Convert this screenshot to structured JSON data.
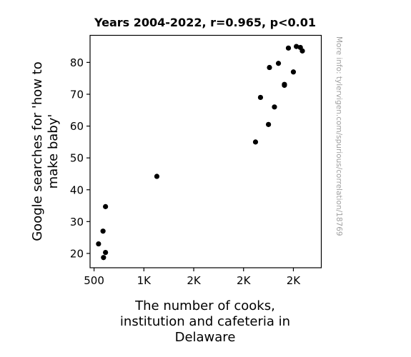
{
  "chart_data": {
    "type": "scatter",
    "title": "Years 2004-2022, r=0.965, p<0.01",
    "xlabel_lines": [
      "The number of cooks,",
      "institution and cafeteria in",
      "Delaware"
    ],
    "ylabel_lines": [
      "Google searches for 'how to",
      "make baby'"
    ],
    "side_note": "More info: tylervigen.com/spurious/correlation/18769",
    "xlim": [
      460,
      2780
    ],
    "ylim": [
      15.5,
      88.5
    ],
    "x_ticks": [
      {
        "value": 500,
        "label": "500"
      },
      {
        "value": 1000,
        "label": "1K"
      },
      {
        "value": 1500,
        "label": "2K"
      },
      {
        "value": 2000,
        "label": "2K"
      },
      {
        "value": 2500,
        "label": "2K"
      }
    ],
    "y_ticks": [
      {
        "value": 20,
        "label": "20"
      },
      {
        "value": 30,
        "label": "30"
      },
      {
        "value": 40,
        "label": "40"
      },
      {
        "value": 50,
        "label": "50"
      },
      {
        "value": 60,
        "label": "60"
      },
      {
        "value": 70,
        "label": "70"
      },
      {
        "value": 80,
        "label": "80"
      }
    ],
    "points": [
      {
        "x": 545,
        "y": 23.0
      },
      {
        "x": 595,
        "y": 18.7
      },
      {
        "x": 590,
        "y": 27.0
      },
      {
        "x": 615,
        "y": 20.3
      },
      {
        "x": 615,
        "y": 34.7
      },
      {
        "x": 1130,
        "y": 44.2
      },
      {
        "x": 2120,
        "y": 55.0
      },
      {
        "x": 2170,
        "y": 69.0
      },
      {
        "x": 2250,
        "y": 60.5
      },
      {
        "x": 2260,
        "y": 78.4
      },
      {
        "x": 2310,
        "y": 66.0
      },
      {
        "x": 2350,
        "y": 79.7
      },
      {
        "x": 2410,
        "y": 72.8
      },
      {
        "x": 2410,
        "y": 73.1
      },
      {
        "x": 2450,
        "y": 84.5
      },
      {
        "x": 2500,
        "y": 77.0
      },
      {
        "x": 2530,
        "y": 85.0
      },
      {
        "x": 2570,
        "y": 84.7
      },
      {
        "x": 2590,
        "y": 83.6
      }
    ],
    "point_color": "#000000",
    "grid": false,
    "legend": "none"
  }
}
